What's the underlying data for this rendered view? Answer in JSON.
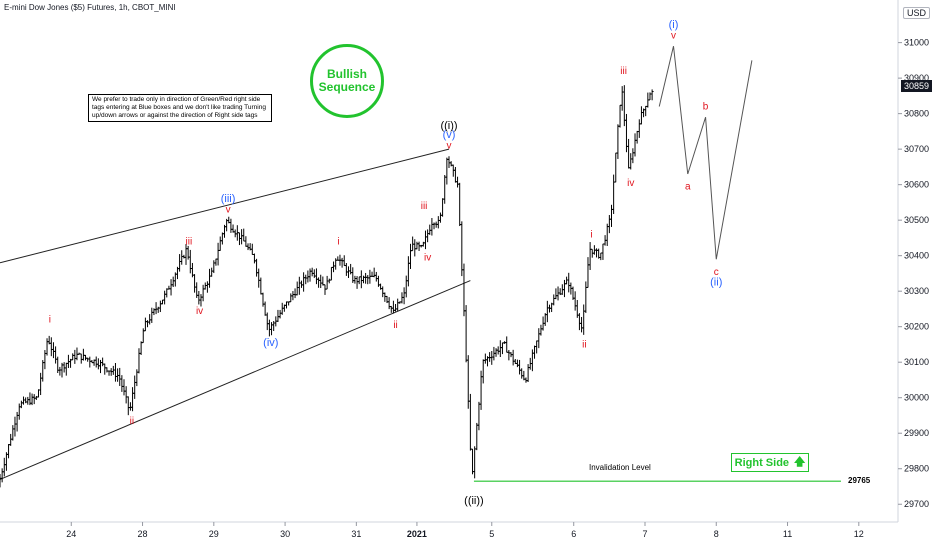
{
  "header": {
    "title": "E-mini Dow Jones ($5) Futures, 1h, CBOT_MINI",
    "unit": "USD"
  },
  "note_text": "We prefer to trade only in direction of Green/Red right side tags entering at Blue boxes and we don't like trading Turning up/down arrows or against the direction of Right side tags",
  "badge": {
    "line1": "Bullish",
    "line2": "Sequence"
  },
  "right_side": {
    "label": "Right Side",
    "arrow": "🡅"
  },
  "invalidation": {
    "label": "Invalidation Level",
    "value": "29765"
  },
  "last_price": "30859",
  "colors": {
    "green": "#22c32e",
    "red": "#e0141e",
    "blue": "#2962ff",
    "black": "#000000",
    "grey": "#555555"
  },
  "chart_data": {
    "type": "ohlc",
    "xlabel": "",
    "ylabel": "",
    "ylim": [
      29650,
      31120
    ],
    "y_ticks": [
      29700,
      29800,
      29900,
      30000,
      30100,
      30200,
      30300,
      30400,
      30500,
      30600,
      30700,
      30800,
      30900,
      31000
    ],
    "x_ticks": [
      {
        "label": "24",
        "t": 1.0
      },
      {
        "label": "28",
        "t": 2.0
      },
      {
        "label": "29",
        "t": 3.0
      },
      {
        "label": "30",
        "t": 4.0
      },
      {
        "label": "31",
        "t": 5.0
      },
      {
        "label": "2021",
        "t": 5.85
      },
      {
        "label": "5",
        "t": 6.9
      },
      {
        "label": "6",
        "t": 8.05
      },
      {
        "label": "7",
        "t": 9.05
      },
      {
        "label": "8",
        "t": 10.05
      },
      {
        "label": "11",
        "t": 11.05
      },
      {
        "label": "12",
        "t": 12.05
      }
    ],
    "price_path": [
      {
        "t": 0.0,
        "v": 29750
      },
      {
        "t": 0.3,
        "v": 29980
      },
      {
        "t": 0.55,
        "v": 30000
      },
      {
        "t": 0.7,
        "v": 30170
      },
      {
        "t": 0.85,
        "v": 30080
      },
      {
        "t": 1.1,
        "v": 30120
      },
      {
        "t": 1.4,
        "v": 30100
      },
      {
        "t": 1.7,
        "v": 30060
      },
      {
        "t": 1.85,
        "v": 29960
      },
      {
        "t": 2.05,
        "v": 30200
      },
      {
        "t": 2.35,
        "v": 30290
      },
      {
        "t": 2.65,
        "v": 30420
      },
      {
        "t": 2.8,
        "v": 30270
      },
      {
        "t": 3.0,
        "v": 30350
      },
      {
        "t": 3.2,
        "v": 30500
      },
      {
        "t": 3.45,
        "v": 30440
      },
      {
        "t": 3.6,
        "v": 30390
      },
      {
        "t": 3.8,
        "v": 30190
      },
      {
        "t": 4.1,
        "v": 30280
      },
      {
        "t": 4.4,
        "v": 30360
      },
      {
        "t": 4.6,
        "v": 30310
      },
      {
        "t": 4.75,
        "v": 30400
      },
      {
        "t": 5.0,
        "v": 30330
      },
      {
        "t": 5.3,
        "v": 30340
      },
      {
        "t": 5.55,
        "v": 30240
      },
      {
        "t": 5.7,
        "v": 30290
      },
      {
        "t": 5.8,
        "v": 30430
      },
      {
        "t": 5.95,
        "v": 30420
      },
      {
        "t": 6.1,
        "v": 30500
      },
      {
        "t": 6.2,
        "v": 30490
      },
      {
        "t": 6.3,
        "v": 30680
      },
      {
        "t": 6.45,
        "v": 30600
      },
      {
        "t": 6.55,
        "v": 30200
      },
      {
        "t": 6.65,
        "v": 29765
      },
      {
        "t": 6.8,
        "v": 30100
      },
      {
        "t": 7.1,
        "v": 30150
      },
      {
        "t": 7.4,
        "v": 30050
      },
      {
        "t": 7.7,
        "v": 30250
      },
      {
        "t": 8.0,
        "v": 30330
      },
      {
        "t": 8.2,
        "v": 30190
      },
      {
        "t": 8.3,
        "v": 30420
      },
      {
        "t": 8.45,
        "v": 30400
      },
      {
        "t": 8.6,
        "v": 30510
      },
      {
        "t": 8.75,
        "v": 30880
      },
      {
        "t": 8.85,
        "v": 30640
      },
      {
        "t": 9.0,
        "v": 30780
      },
      {
        "t": 9.15,
        "v": 30859
      }
    ],
    "projection": [
      {
        "t": 9.25,
        "v": 30820
      },
      {
        "t": 9.45,
        "v": 30990
      },
      {
        "t": 9.65,
        "v": 30630
      },
      {
        "t": 9.9,
        "v": 30790
      },
      {
        "t": 10.05,
        "v": 30390
      },
      {
        "t": 10.55,
        "v": 30950
      }
    ],
    "channel": [
      {
        "from": {
          "t": 0.0,
          "v": 30380
        },
        "to": {
          "t": 6.3,
          "v": 30700
        }
      },
      {
        "from": {
          "t": 0.0,
          "v": 29770
        },
        "to": {
          "t": 6.6,
          "v": 30330
        }
      }
    ],
    "horizontal_level": {
      "value": 29765,
      "t_from": 6.65,
      "t_to": 11.8
    },
    "wave_labels": [
      {
        "text": "i",
        "t": 0.7,
        "v": 30200,
        "color": "red",
        "pos": "above"
      },
      {
        "text": "ii",
        "t": 1.85,
        "v": 29960,
        "color": "red",
        "pos": "below"
      },
      {
        "text": "iii",
        "t": 2.65,
        "v": 30420,
        "color": "red",
        "pos": "above"
      },
      {
        "text": "iv",
        "t": 2.8,
        "v": 30270,
        "color": "red",
        "pos": "below"
      },
      {
        "text": "v",
        "t": 3.2,
        "v": 30510,
        "color": "red",
        "pos": "above"
      },
      {
        "text": "(iii)",
        "t": 3.2,
        "v": 30540,
        "color": "blue",
        "pos": "above"
      },
      {
        "text": "(iv)",
        "t": 3.8,
        "v": 30180,
        "color": "blue",
        "pos": "below"
      },
      {
        "text": "i",
        "t": 4.75,
        "v": 30420,
        "color": "red",
        "pos": "above"
      },
      {
        "text": "ii",
        "t": 5.55,
        "v": 30230,
        "color": "red",
        "pos": "below"
      },
      {
        "text": "iii",
        "t": 5.95,
        "v": 30520,
        "color": "red",
        "pos": "above"
      },
      {
        "text": "iv",
        "t": 6.0,
        "v": 30420,
        "color": "red",
        "pos": "below"
      },
      {
        "text": "v",
        "t": 6.3,
        "v": 30690,
        "color": "red",
        "pos": "above"
      },
      {
        "text": "(v)",
        "t": 6.3,
        "v": 30720,
        "color": "blue",
        "pos": "above"
      },
      {
        "text": "((i))",
        "t": 6.3,
        "v": 30745,
        "color": "black",
        "pos": "above"
      },
      {
        "text": "((ii))",
        "t": 6.65,
        "v": 29735,
        "color": "black",
        "pos": "below"
      },
      {
        "text": "i",
        "t": 8.3,
        "v": 30440,
        "color": "red",
        "pos": "above"
      },
      {
        "text": "ii",
        "t": 8.2,
        "v": 30175,
        "color": "red",
        "pos": "below"
      },
      {
        "text": "iii",
        "t": 8.75,
        "v": 30900,
        "color": "red",
        "pos": "above"
      },
      {
        "text": "iv",
        "t": 8.85,
        "v": 30630,
        "color": "red",
        "pos": "below"
      },
      {
        "text": "v",
        "t": 9.45,
        "v": 31000,
        "color": "red",
        "pos": "above"
      },
      {
        "text": "(i)",
        "t": 9.45,
        "v": 31030,
        "color": "blue",
        "pos": "above"
      },
      {
        "text": "a",
        "t": 9.65,
        "v": 30620,
        "color": "red",
        "pos": "below"
      },
      {
        "text": "b",
        "t": 9.9,
        "v": 30800,
        "color": "red",
        "pos": "above"
      },
      {
        "text": "c",
        "t": 10.05,
        "v": 30380,
        "color": "red",
        "pos": "below"
      },
      {
        "text": "(ii)",
        "t": 10.05,
        "v": 30350,
        "color": "blue",
        "pos": "below"
      }
    ]
  }
}
